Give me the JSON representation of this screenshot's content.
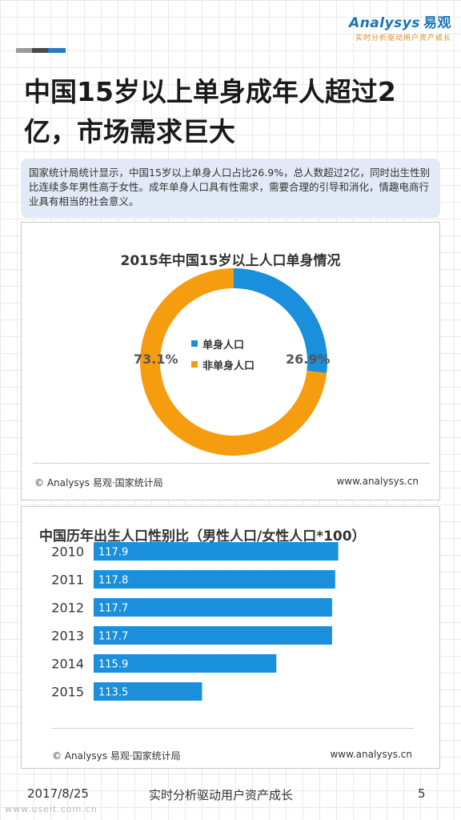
{
  "brand": {
    "name": "Analysys",
    "name_cn": "易观",
    "tagline": "实时分析驱动用户资产成长"
  },
  "colors": {
    "blue": "#1a8fdc",
    "orange": "#f59d0e",
    "accent_gray": "#9a9a9a",
    "accent_dark": "#4a4a4a",
    "accent_blue": "#2a78c2"
  },
  "page": {
    "title_line1": "中国15岁以上单身成年人超过2",
    "title_line2": "亿，市场需求巨大",
    "summary": "国家统计局统计显示，中国15岁以上单身人口占比26.9%，总人数超过2亿，同时出生性别比连续多年男性高于女性。成年单身人口具有性需求，需要合理的引导和消化，情趣电商行业具有相当的社会意义。",
    "footer": {
      "date": "2017/8/25",
      "tagline": "实时分析驱动用户资产成长",
      "page_number": "5"
    },
    "watermark_url": "www.useit.com.cn"
  },
  "chart_data": [
    {
      "type": "pie",
      "title": "2015年中国15岁以上人口单身情况",
      "categories": [
        "单身人口",
        "非单身人口"
      ],
      "values": [
        26.9,
        73.1
      ],
      "value_labels": [
        "26.9%",
        "73.1%"
      ],
      "colors": [
        "#1a8fdc",
        "#f59d0e"
      ],
      "donut": true,
      "legend": "center",
      "source": "© Analysys 易观·国家统计局",
      "site": "www.analysys.cn"
    },
    {
      "type": "bar",
      "orientation": "horizontal",
      "title": "中国历年出生人口性别比（男性人口/女性人口*100）",
      "categories": [
        "2010",
        "2011",
        "2012",
        "2013",
        "2014",
        "2015"
      ],
      "values": [
        117.9,
        117.8,
        117.7,
        117.7,
        115.9,
        113.5
      ],
      "value_labels": [
        "117.9",
        "117.8",
        "117.7",
        "117.7",
        "115.9",
        "113.5"
      ],
      "xlim": [
        110,
        118.4
      ],
      "color": "#1a8fdc",
      "source": "© Analysys 易观·国家统计局",
      "site": "www.analysys.cn"
    }
  ]
}
